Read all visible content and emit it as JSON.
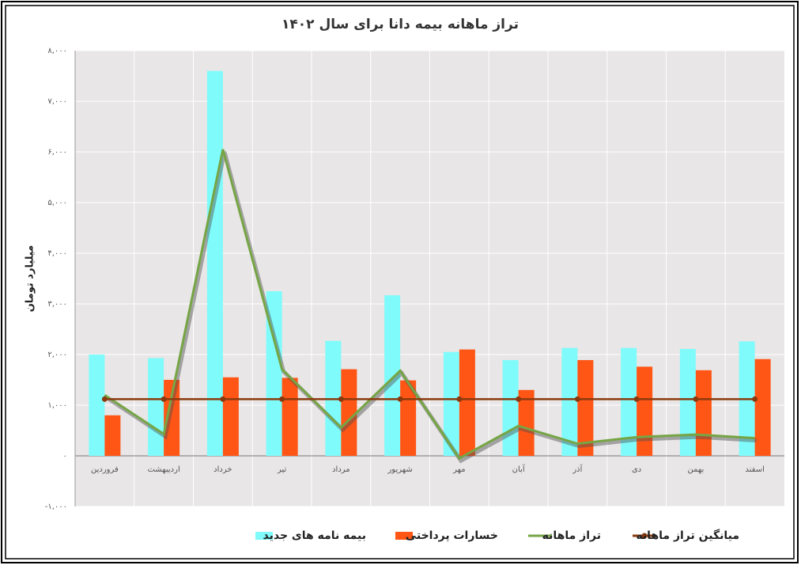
{
  "chart_data": {
    "type": "bar",
    "title": "تراز ماهانه بیمه دانا برای سال ۱۴۰۲",
    "y_label": "میلیارد تومان",
    "categories": [
      "فروردین",
      "اردیبهشت",
      "خرداد",
      "تیر",
      "مرداد",
      "شهریور",
      "مهر",
      "آبان",
      "آذر",
      "دی",
      "بهمن",
      "اسفند"
    ],
    "series": [
      {
        "name": "بیمه نامه های جدید",
        "type": "bar",
        "color": "#80fbfb",
        "values": [
          2000,
          1930,
          7600,
          3250,
          2270,
          3170,
          2050,
          1890,
          2130,
          2130,
          2110,
          2260
        ]
      },
      {
        "name": "خسارات پرداختی",
        "type": "bar",
        "color": "#ff5515",
        "values": [
          800,
          1500,
          1550,
          1540,
          1710,
          1490,
          2100,
          1300,
          1890,
          1760,
          1690,
          1910
        ]
      },
      {
        "name": "تراز ماهانه",
        "type": "line",
        "color": "#76a545",
        "values": [
          1200,
          430,
          6050,
          1710,
          560,
          1680,
          -50,
          590,
          240,
          370,
          420,
          350
        ]
      },
      {
        "name": "میانگین تراز ماهانه",
        "type": "line",
        "markers": true,
        "color": "#8b3a0e",
        "values": [
          1120,
          1120,
          1120,
          1120,
          1120,
          1120,
          1120,
          1120,
          1120,
          1120,
          1120,
          1120
        ]
      }
    ],
    "ylim": [
      -1000,
      8000
    ],
    "yticks": [
      {
        "value": -1000,
        "label": "-۱,۰۰۰"
      },
      {
        "value": 0,
        "label": "۰"
      },
      {
        "value": 1000,
        "label": "۱,۰۰۰"
      },
      {
        "value": 2000,
        "label": "۲,۰۰۰"
      },
      {
        "value": 3000,
        "label": "۳,۰۰۰"
      },
      {
        "value": 4000,
        "label": "۴,۰۰۰"
      },
      {
        "value": 5000,
        "label": "۵,۰۰۰"
      },
      {
        "value": 6000,
        "label": "۶,۰۰۰"
      },
      {
        "value": 7000,
        "label": "۷,۰۰۰"
      },
      {
        "value": 8000,
        "label": "۸,۰۰۰"
      }
    ],
    "grid": true,
    "legend": "bottom"
  }
}
